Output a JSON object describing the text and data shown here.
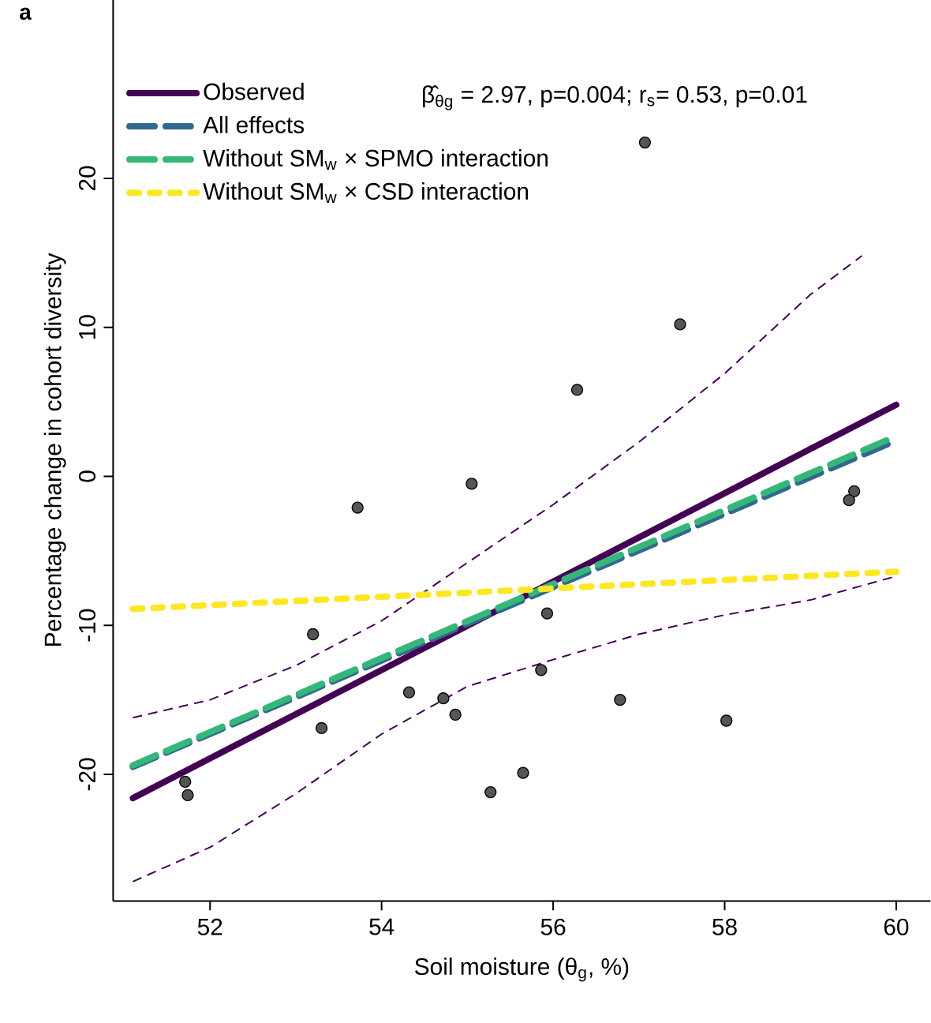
{
  "chart_data": {
    "type": "line",
    "title": "a",
    "xlabel": "Soil moisture (θ$_{g}$, %)",
    "ylabel": "Percentage change in cohort diversity",
    "xlim": [
      50.87,
      60.4
    ],
    "ylim": [
      -28.5,
      32
    ],
    "xticks": [
      52,
      54,
      56,
      58,
      60
    ],
    "yticks": [
      -20,
      -10,
      0,
      10,
      20
    ],
    "legend": "top left",
    "annotations": [
      "β̂$_{θg}$ = 2.97, p=0.004; r$_{s}$= 0.53, p=0.01"
    ],
    "series": [
      {
        "type": "scatter",
        "color": "#555555",
        "x": [
          57.07,
          57.48,
          56.28,
          55.05,
          53.72,
          59.51,
          59.45,
          55.93,
          53.2,
          55.86,
          54.32,
          54.72,
          54.86,
          53.3,
          56.78,
          58.02,
          55.65,
          55.27,
          51.71,
          51.74
        ],
        "values": [
          22.4,
          10.2,
          5.8,
          -0.5,
          -2.1,
          -1.0,
          -1.6,
          -9.2,
          -10.6,
          -13.0,
          -14.5,
          -14.9,
          -16.0,
          -16.9,
          -15.0,
          -16.4,
          -19.9,
          -21.2,
          -20.5,
          -21.4
        ]
      },
      {
        "color": "#440154",
        "line_style": "dashed",
        "x": [
          51.1,
          52,
          53,
          54,
          55,
          56,
          57,
          58,
          59,
          60
        ],
        "values": [
          -27.2,
          -24.9,
          -21.3,
          -17.3,
          -14.1,
          -12.3,
          -10.6,
          -9.3,
          -8.3,
          -6.7
        ]
      },
      {
        "color": "#440154",
        "line_style": "dashed",
        "x": [
          51.1,
          52,
          53,
          54,
          55,
          56,
          57,
          58,
          59,
          59.6
        ],
        "values": [
          -16.2,
          -15.0,
          -12.7,
          -9.7,
          -5.8,
          -1.9,
          2.3,
          6.9,
          12.2,
          14.8
        ]
      },
      {
        "name": "Observed",
        "color": "#440154",
        "line_style": "solid",
        "x": [
          51.1,
          60
        ],
        "values": [
          -21.6,
          4.8
        ]
      },
      {
        "name": "All effects",
        "color": "#31688e",
        "line_style": "dashed",
        "x": [
          51.1,
          60
        ],
        "values": [
          -19.5,
          2.4
        ]
      },
      {
        "name": "Without SM$_{w}$ × SPMO interaction",
        "color": "#35b779",
        "line_style": "dashed",
        "x": [
          51.1,
          60
        ],
        "values": [
          -19.4,
          2.7
        ]
      },
      {
        "name": "Without SM$_{w}$ × CSD interaction",
        "color": "#fde725",
        "line_style": "dotted",
        "x": [
          51.1,
          60
        ],
        "values": [
          -8.9,
          -6.4
        ]
      }
    ]
  }
}
